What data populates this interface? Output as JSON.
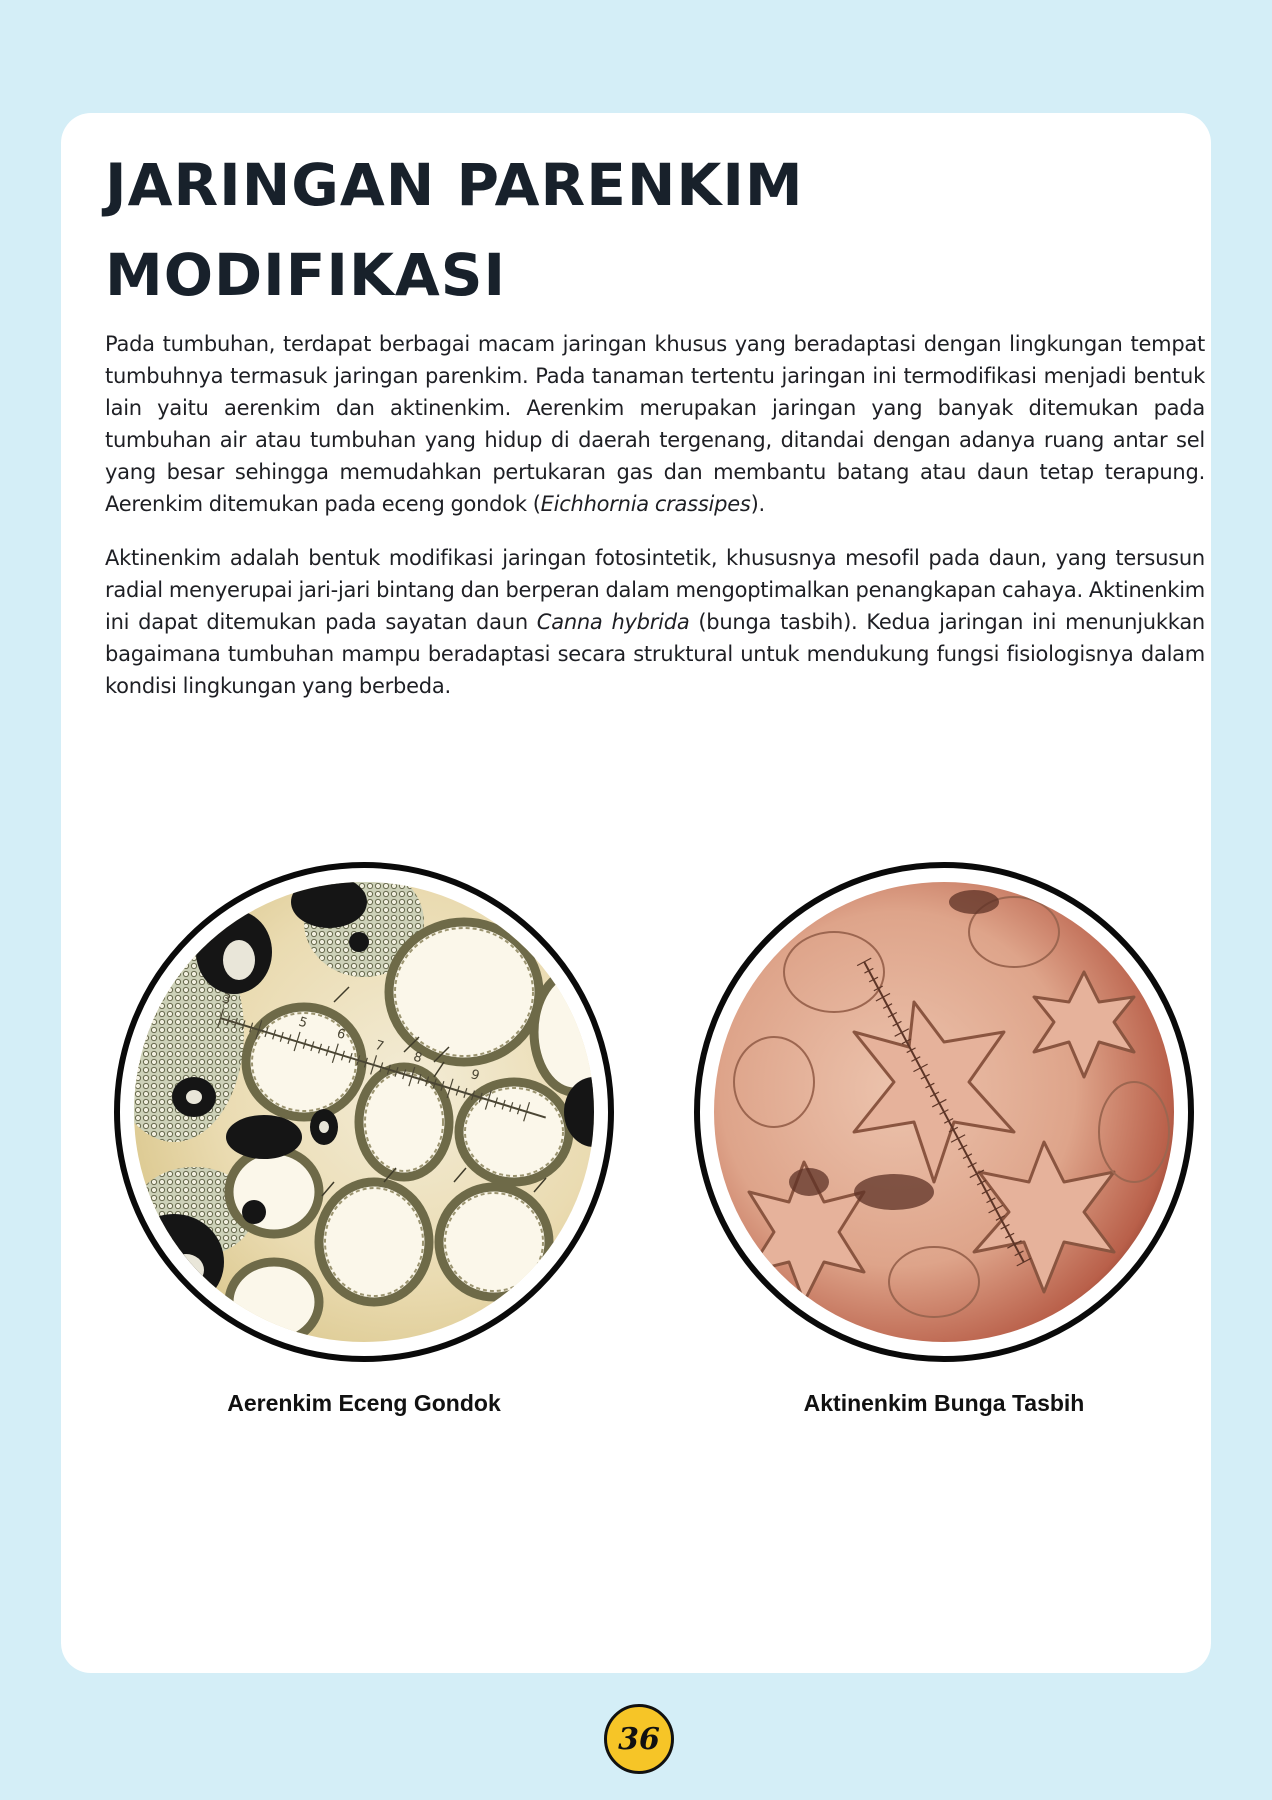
{
  "title": {
    "line1": "JARINGAN PARENKIM",
    "line2": "MODIFIKASI"
  },
  "paragraph1": {
    "text": "Pada tumbuhan, terdapat berbagai macam jaringan khusus yang beradaptasi dengan lingkungan tempat tumbuhnya termasuk jaringan parenkim. Pada tanaman tertentu jaringan ini termodifikasi menjadi bentuk lain yaitu aerenkim dan aktinenkim. Aerenkim merupakan jaringan yang banyak ditemukan pada tumbuhan air atau tumbuhan yang hidup di daerah tergenang, ditandai dengan adanya ruang antar sel yang besar sehingga memudahkan pertukaran gas dan membantu batang atau daun tetap terapung. Aerenkim ditemukan pada eceng gondok (",
    "species": "Eichhornia crassipes",
    "end": ")."
  },
  "paragraph2": {
    "text": "Aktinenkim adalah bentuk modifikasi jaringan fotosintetik, khususnya mesofil pada daun, yang tersusun radial menyerupai jari-jari bintang dan berperan dalam mengoptimalkan penangkapan cahaya. Aktinenkim ini dapat ditemukan pada sayatan daun ",
    "species": "Canna hybrida",
    "end": " (bunga tasbih). Kedua jaringan ini menunjukkan bagaimana tumbuhan mampu beradaptasi secara struktural untuk mendukung fungsi fisiologisnya dalam kondisi lingkungan yang berbeda."
  },
  "figures": {
    "left": {
      "caption": "Aerenkim Eceng Gondok",
      "scale_numbers": [
        "3",
        "5",
        "6",
        "7",
        "8",
        "9"
      ]
    },
    "right": {
      "caption": "Aktinenkim Bunga Tasbih"
    }
  },
  "page_number": "36",
  "colors": {
    "background": "#d4eef7",
    "card": "#ffffff",
    "badge": "#f6c527",
    "title": "#18212b"
  }
}
